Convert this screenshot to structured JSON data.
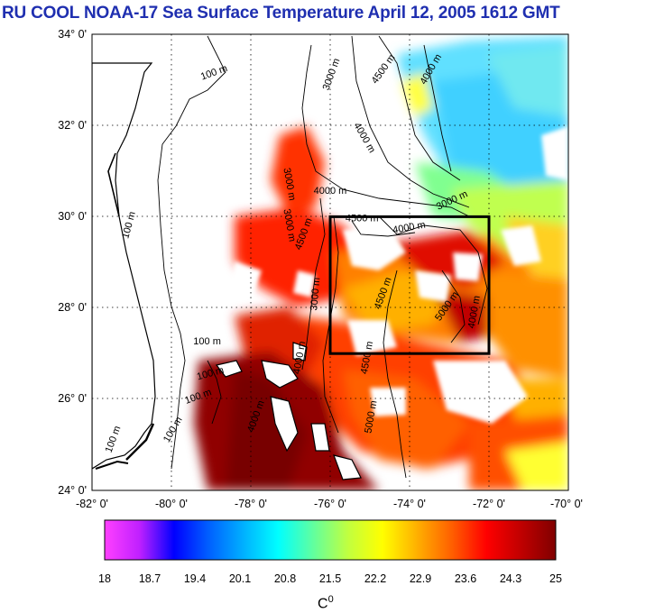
{
  "title": "RU COOL  NOAA-17 Sea Surface Temperature April 12, 2005 1612 GMT",
  "map": {
    "lat_labels": [
      "34° 0'",
      "32° 0'",
      "30° 0'",
      "28° 0'",
      "26° 0'",
      "24° 0'"
    ],
    "lon_labels": [
      "-82° 0'",
      "-80° 0'",
      "-78° 0'",
      "-76° 0'",
      "-74° 0'",
      "-72° 0'",
      "-70° 0'"
    ],
    "lat_range": [
      24,
      34
    ],
    "lon_range": [
      -82,
      -70
    ],
    "study_box": {
      "lon": [
        -76,
        -72
      ],
      "lat": [
        27,
        30
      ]
    },
    "contour_labels": [
      {
        "text": "100 m",
        "lon": -78.9,
        "lat": 33.1,
        "rot": -20
      },
      {
        "text": "3000 m",
        "lon": -75.9,
        "lat": 33.1,
        "rot": -70
      },
      {
        "text": "4500 m",
        "lon": -74.6,
        "lat": 33.2,
        "rot": -55
      },
      {
        "text": "4000 m",
        "lon": -73.4,
        "lat": 33.2,
        "rot": -60
      },
      {
        "text": "4000 m",
        "lon": -75.2,
        "lat": 31.7,
        "rot": 60
      },
      {
        "text": "4000 m",
        "lon": -76.0,
        "lat": 30.5,
        "rot": 0
      },
      {
        "text": "3000 m",
        "lon": -72.9,
        "lat": 30.3,
        "rot": -25
      },
      {
        "text": "4500 m",
        "lon": -75.2,
        "lat": 29.9,
        "rot": 0
      },
      {
        "text": "4000 m",
        "lon": -74.0,
        "lat": 29.7,
        "rot": -10
      },
      {
        "text": "100 m",
        "lon": -81.0,
        "lat": 29.8,
        "rot": -75
      },
      {
        "text": "3000 m",
        "lon": -77.1,
        "lat": 30.7,
        "rot": 80
      },
      {
        "text": "3000 m",
        "lon": -77.1,
        "lat": 29.8,
        "rot": 80
      },
      {
        "text": "4500 m",
        "lon": -76.6,
        "lat": 29.6,
        "rot": -70
      },
      {
        "text": "4500 m",
        "lon": -74.6,
        "lat": 28.3,
        "rot": -70
      },
      {
        "text": "5000 m",
        "lon": -73.0,
        "lat": 28.0,
        "rot": -55
      },
      {
        "text": "4000 m",
        "lon": -72.3,
        "lat": 27.9,
        "rot": -80
      },
      {
        "text": "3000 m",
        "lon": -76.3,
        "lat": 28.3,
        "rot": -85
      },
      {
        "text": "4000 m",
        "lon": -76.7,
        "lat": 26.9,
        "rot": -80
      },
      {
        "text": "4500 m",
        "lon": -75.0,
        "lat": 26.9,
        "rot": -80
      },
      {
        "text": "5000 m",
        "lon": -74.9,
        "lat": 25.6,
        "rot": -80
      },
      {
        "text": "100 m",
        "lon": -79.1,
        "lat": 27.2,
        "rot": 0
      },
      {
        "text": "100 m",
        "lon": -79.0,
        "lat": 26.5,
        "rot": -15
      },
      {
        "text": "100 m",
        "lon": -79.3,
        "lat": 26.0,
        "rot": -20
      },
      {
        "text": "100 m",
        "lon": -79.9,
        "lat": 25.3,
        "rot": -60
      },
      {
        "text": "100 m",
        "lon": -81.4,
        "lat": 25.1,
        "rot": -70
      },
      {
        "text": "4000 m",
        "lon": -77.8,
        "lat": 25.6,
        "rot": -70
      }
    ]
  },
  "colorbar": {
    "ticks": [
      "18",
      "18.7",
      "19.4",
      "20.1",
      "20.8",
      "21.5",
      "22.2",
      "22.9",
      "23.6",
      "24.3",
      "25"
    ],
    "unit": "C",
    "unit_sup": "0",
    "colors": [
      "#ff40ff",
      "#c020ff",
      "#0000ff",
      "#0060ff",
      "#00b0ff",
      "#00ffff",
      "#60ffa0",
      "#c0ff40",
      "#ffff00",
      "#ffb000",
      "#ff6000",
      "#ff0000",
      "#c00000",
      "#800000"
    ]
  }
}
